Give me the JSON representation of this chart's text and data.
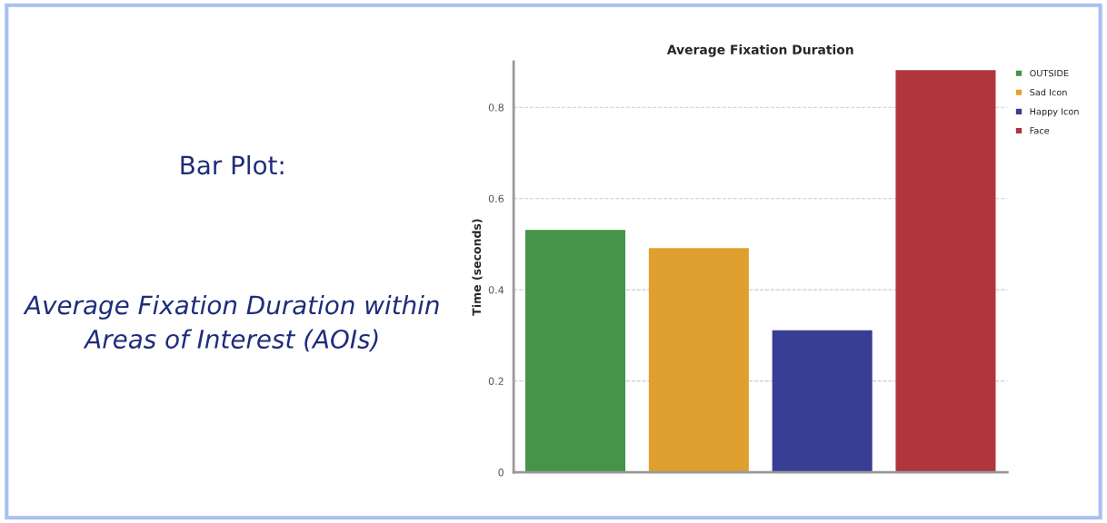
{
  "chart_data": {
    "type": "bar",
    "title": "Average Fixation Duration",
    "ylabel": "Time (seconds)",
    "annotations": [
      "Bar Plot:",
      "Average Fixation Duration within Areas of Interest (AOIs)"
    ],
    "categories": [
      null,
      null,
      null,
      null
    ],
    "series": [
      {
        "name": "OUTSIDE",
        "color": "#45944a",
        "values": [
          0.53,
          null,
          null,
          null
        ]
      },
      {
        "name": "Sad Icon",
        "color": "#e0a030",
        "values": [
          null,
          0.49,
          null,
          null
        ]
      },
      {
        "name": "Happy Icon",
        "color": "#383e94",
        "values": [
          null,
          null,
          0.31,
          null
        ]
      },
      {
        "name": "Face",
        "color": "#b0353c",
        "values": [
          null,
          null,
          null,
          0.88
        ]
      }
    ],
    "ylim": [
      0,
      0.9
    ],
    "yticks": [
      0,
      0.2,
      0.4,
      0.6,
      0.8
    ],
    "grid": "y",
    "legend": "top right"
  }
}
